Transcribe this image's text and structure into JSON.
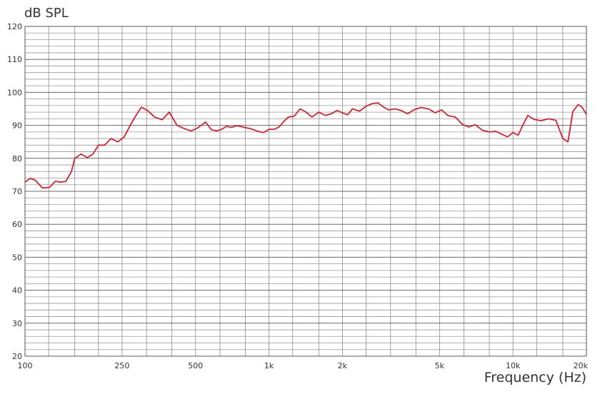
{
  "chart_data": {
    "type": "line",
    "ylabel": "dB SPL",
    "xlabel": "Frequency (Hz)",
    "x_scale": "log",
    "xlim": [
      100,
      20000
    ],
    "ylim": [
      20,
      120
    ],
    "y_ticks": [
      20,
      30,
      40,
      50,
      60,
      70,
      80,
      90,
      100,
      110,
      120
    ],
    "x_ticks": [
      {
        "value": 100,
        "label": "100"
      },
      {
        "value": 250,
        "label": "250"
      },
      {
        "value": 500,
        "label": "500"
      },
      {
        "value": 1000,
        "label": "1k"
      },
      {
        "value": 2000,
        "label": "2k"
      },
      {
        "value": 5000,
        "label": "5k"
      },
      {
        "value": 10000,
        "label": "10k"
      },
      {
        "value": 20000,
        "label": "20k"
      }
    ],
    "grid": true,
    "line_color": "#d62130",
    "series": [
      {
        "x": [
          100,
          105,
          110,
          118,
          126,
          133,
          140,
          147,
          155,
          160,
          170,
          180,
          190,
          200,
          212,
          225,
          240,
          255,
          270,
          285,
          300,
          318,
          340,
          365,
          390,
          420,
          450,
          480,
          510,
          550,
          580,
          610,
          640,
          670,
          700,
          740,
          790,
          840,
          900,
          950,
          1000,
          1050,
          1100,
          1150,
          1200,
          1270,
          1340,
          1420,
          1500,
          1600,
          1700,
          1800,
          1900,
          2000,
          2100,
          2200,
          2350,
          2500,
          2650,
          2800,
          2950,
          3100,
          3300,
          3500,
          3700,
          3950,
          4200,
          4500,
          4800,
          5100,
          5400,
          5800,
          6200,
          6600,
          7000,
          7500,
          8000,
          8500,
          9000,
          9500,
          10000,
          10500,
          11000,
          11500,
          12200,
          13000,
          14000,
          15000,
          16000,
          16800,
          17600,
          18500,
          19200,
          20000
        ],
        "y": [
          72.8,
          73.9,
          73.4,
          71.0,
          71.2,
          73.0,
          72.8,
          73.0,
          76.0,
          80.0,
          81.3,
          80.2,
          81.3,
          84.0,
          84.0,
          86.0,
          85.0,
          86.5,
          90.0,
          93.0,
          95.5,
          94.5,
          92.5,
          91.7,
          94.0,
          90.0,
          89.0,
          88.3,
          89.2,
          91.0,
          88.7,
          88.3,
          88.8,
          89.7,
          89.4,
          89.9,
          89.4,
          89.0,
          88.2,
          87.8,
          88.8,
          88.8,
          89.5,
          91.2,
          92.5,
          92.8,
          95.0,
          94.0,
          92.5,
          94.0,
          93.0,
          93.5,
          94.5,
          93.8,
          93.2,
          95.0,
          94.3,
          95.8,
          96.6,
          96.8,
          95.5,
          94.7,
          95.0,
          94.4,
          93.5,
          94.8,
          95.4,
          95.0,
          93.8,
          94.7,
          93.0,
          92.5,
          90.3,
          89.5,
          90.2,
          88.5,
          88.0,
          88.2,
          87.3,
          86.5,
          87.8,
          87.0,
          90.2,
          93.0,
          91.8,
          91.4,
          92.0,
          91.5,
          86.0,
          85.0,
          94.2,
          96.3,
          95.5,
          93.3
        ]
      }
    ]
  }
}
